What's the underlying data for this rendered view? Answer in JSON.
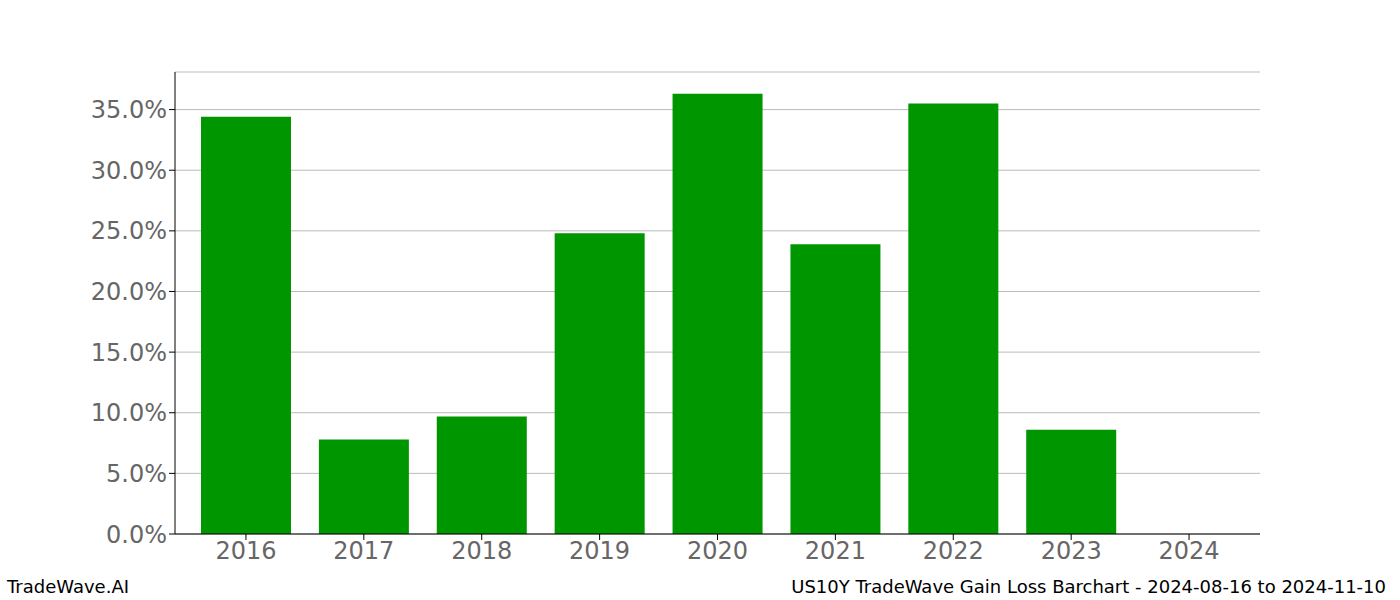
{
  "chart_data": {
    "type": "bar",
    "title": "US10Y TradeWave Gain Loss Barchart - 2024-08-16 to 2024-11-10",
    "annotations": [
      "TradeWave.AI"
    ],
    "categories": [
      "2016",
      "2017",
      "2018",
      "2019",
      "2020",
      "2021",
      "2022",
      "2023",
      "2024"
    ],
    "values": [
      34.4,
      7.8,
      9.7,
      24.8,
      36.3,
      23.9,
      35.5,
      8.6,
      0
    ],
    "color": "#009600",
    "ylim": [
      0,
      38.1
    ],
    "yticks": [
      {
        "value": 0,
        "label": "0.0%"
      },
      {
        "value": 5,
        "label": "5.0%"
      },
      {
        "value": 10,
        "label": "10.0%"
      },
      {
        "value": 15,
        "label": "15.0%"
      },
      {
        "value": 20,
        "label": "20.0%"
      },
      {
        "value": 25,
        "label": "25.0%"
      },
      {
        "value": 30,
        "label": "30.0%"
      },
      {
        "value": 35,
        "label": "35.0%"
      }
    ],
    "grid": true
  }
}
